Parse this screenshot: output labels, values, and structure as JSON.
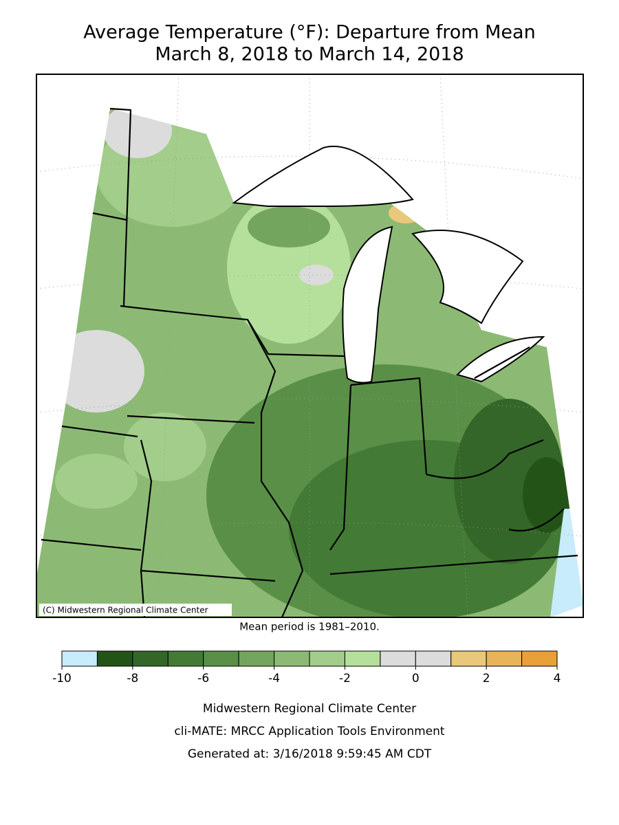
{
  "header": {
    "title_line1": "Average Temperature (°F): Departure from Mean",
    "title_line2": "March 8, 2018 to March 14, 2018"
  },
  "map": {
    "credit": "(C) Midwestern Regional Climate Center",
    "note": "Mean period is 1981–2010."
  },
  "legend": {
    "bounds": [
      -10,
      -9,
      -8,
      -7,
      -6,
      -5,
      -4,
      -3,
      -2,
      -1,
      0,
      1,
      2,
      3,
      4
    ],
    "colors": [
      "#c8ecfc",
      "#245318",
      "#336628",
      "#437a36",
      "#5a8f48",
      "#74a55e",
      "#8cba74",
      "#a2cd8a",
      "#b5e09c",
      "#dcdcdc",
      "#dcdcdc",
      "#e8c87a",
      "#e8b45a",
      "#e8a038"
    ],
    "ticks": [
      -10,
      -8,
      -6,
      -4,
      -2,
      0,
      2,
      4
    ]
  },
  "footer": {
    "line1": "Midwestern Regional Climate Center",
    "line2": "cli-MATE: MRCC Application Tools Environment",
    "line3": "Generated at: 3/16/2018 9:59:45 AM CDT"
  }
}
